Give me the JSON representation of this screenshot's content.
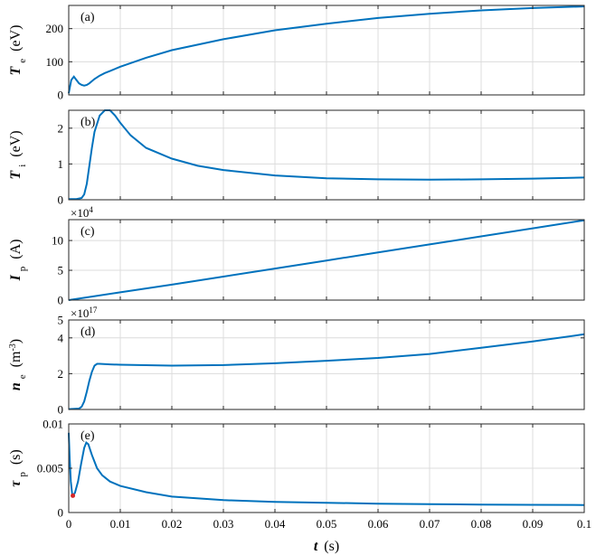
{
  "chart_data": [
    {
      "type": "line",
      "panel_label": "(a)",
      "ylabel": {
        "symbol": "T",
        "sub": "e",
        "unit": "(eV)"
      },
      "xlim": [
        0,
        0.1
      ],
      "ylim": [
        0,
        270
      ],
      "yticks": [
        0,
        100,
        200
      ],
      "ytick_labels": [
        "0",
        "100",
        "200"
      ],
      "multiplier": null,
      "series": [
        {
          "x": [
            0,
            0.0005,
            0.001,
            0.0015,
            0.002,
            0.0025,
            0.003,
            0.0035,
            0.004,
            0.005,
            0.006,
            0.007,
            0.008,
            0.01,
            0.015,
            0.02,
            0.03,
            0.04,
            0.05,
            0.06,
            0.07,
            0.08,
            0.09,
            0.1
          ],
          "y": [
            5,
            45,
            55,
            45,
            35,
            30,
            28,
            30,
            35,
            48,
            58,
            66,
            72,
            85,
            112,
            135,
            168,
            195,
            215,
            232,
            245,
            255,
            262,
            267
          ]
        }
      ]
    },
    {
      "type": "line",
      "panel_label": "(b)",
      "ylabel": {
        "symbol": "T",
        "sub": "i",
        "unit": "(eV)"
      },
      "xlim": [
        0,
        0.1
      ],
      "ylim": [
        0,
        2.5
      ],
      "yticks": [
        0,
        1,
        2
      ],
      "ytick_labels": [
        "0",
        "1",
        "2"
      ],
      "multiplier": null,
      "series": [
        {
          "x": [
            0,
            0.0015,
            0.0025,
            0.003,
            0.0035,
            0.004,
            0.0045,
            0.005,
            0.006,
            0.007,
            0.008,
            0.009,
            0.01,
            0.012,
            0.015,
            0.02,
            0.025,
            0.03,
            0.04,
            0.05,
            0.06,
            0.07,
            0.08,
            0.09,
            0.1
          ],
          "y": [
            0.02,
            0.02,
            0.05,
            0.15,
            0.45,
            0.95,
            1.45,
            1.9,
            2.35,
            2.5,
            2.5,
            2.35,
            2.15,
            1.8,
            1.45,
            1.15,
            0.95,
            0.83,
            0.68,
            0.6,
            0.57,
            0.56,
            0.57,
            0.59,
            0.62
          ]
        }
      ]
    },
    {
      "type": "line",
      "panel_label": "(c)",
      "ylabel": {
        "symbol": "I",
        "sub": "p",
        "unit": "(A)"
      },
      "xlim": [
        0,
        0.1
      ],
      "ylim": [
        0,
        13.5
      ],
      "yticks": [
        0,
        5,
        10
      ],
      "ytick_labels": [
        "0",
        "5",
        "10"
      ],
      "multiplier": {
        "base": "×10",
        "exp": "4"
      },
      "series": [
        {
          "x": [
            0,
            0.01,
            0.02,
            0.03,
            0.04,
            0.05,
            0.06,
            0.07,
            0.08,
            0.09,
            0.1
          ],
          "y": [
            0,
            1.3,
            2.6,
            3.95,
            5.3,
            6.65,
            8.0,
            9.35,
            10.7,
            12.05,
            13.4
          ]
        }
      ]
    },
    {
      "type": "line",
      "panel_label": "(d)",
      "ylabel": {
        "symbol": "n",
        "sub": "e",
        "unit": "(m",
        "unit_sup": "-3",
        "unit_end": ")"
      },
      "xlim": [
        0,
        0.1
      ],
      "ylim": [
        0,
        5
      ],
      "yticks": [
        0,
        2,
        4
      ],
      "ytick_labels": [
        "0",
        "2",
        "4"
      ],
      "top_tick_label": "5",
      "multiplier": {
        "base": "×10",
        "exp": "17"
      },
      "series": [
        {
          "x": [
            0,
            0.002,
            0.0025,
            0.003,
            0.0035,
            0.004,
            0.0045,
            0.005,
            0.0055,
            0.006,
            0.008,
            0.01,
            0.02,
            0.03,
            0.04,
            0.05,
            0.06,
            0.07,
            0.08,
            0.09,
            0.1
          ],
          "y": [
            0.02,
            0.05,
            0.15,
            0.45,
            1.0,
            1.6,
            2.1,
            2.45,
            2.55,
            2.55,
            2.52,
            2.5,
            2.45,
            2.48,
            2.58,
            2.72,
            2.88,
            3.1,
            3.45,
            3.8,
            4.2
          ]
        }
      ]
    },
    {
      "type": "line",
      "panel_label": "(e)",
      "ylabel": {
        "symbol": "τ",
        "sub": "p",
        "unit": "(s)"
      },
      "xlim": [
        0,
        0.1
      ],
      "ylim": [
        0,
        0.01
      ],
      "yticks": [
        0,
        0.005,
        0.01
      ],
      "ytick_labels": [
        "0",
        "0.005",
        "0.01"
      ],
      "multiplier": null,
      "marker": {
        "x": 0.0008,
        "y": 0.0019,
        "color": "#d62728"
      },
      "series": [
        {
          "x": [
            0,
            0.0002,
            0.0004,
            0.0007,
            0.0012,
            0.0018,
            0.0024,
            0.003,
            0.0034,
            0.0038,
            0.0045,
            0.0055,
            0.0065,
            0.008,
            0.01,
            0.015,
            0.02,
            0.03,
            0.04,
            0.05,
            0.06,
            0.07,
            0.08,
            0.09,
            0.1
          ],
          "y": [
            0.009,
            0.006,
            0.0035,
            0.0019,
            0.0022,
            0.0035,
            0.0055,
            0.0073,
            0.0079,
            0.0077,
            0.0065,
            0.005,
            0.0042,
            0.0035,
            0.003,
            0.0023,
            0.0018,
            0.0014,
            0.0012,
            0.0011,
            0.001,
            0.00095,
            0.0009,
            0.00087,
            0.00085
          ]
        }
      ]
    }
  ],
  "x_axis": {
    "ticks": [
      0,
      0.01,
      0.02,
      0.03,
      0.04,
      0.05,
      0.06,
      0.07,
      0.08,
      0.09,
      0.1
    ],
    "tick_labels": [
      "0",
      "0.01",
      "0.02",
      "0.03",
      "0.04",
      "0.05",
      "0.06",
      "0.07",
      "0.08",
      "0.09",
      "0.1"
    ],
    "xlabel_symbol": "t",
    "xlabel_unit": "(s)"
  },
  "grid": true,
  "colors": {
    "series": "#0072bd",
    "marker": "#d62728",
    "grid": "#dcdcdc",
    "frame": "#262626"
  }
}
